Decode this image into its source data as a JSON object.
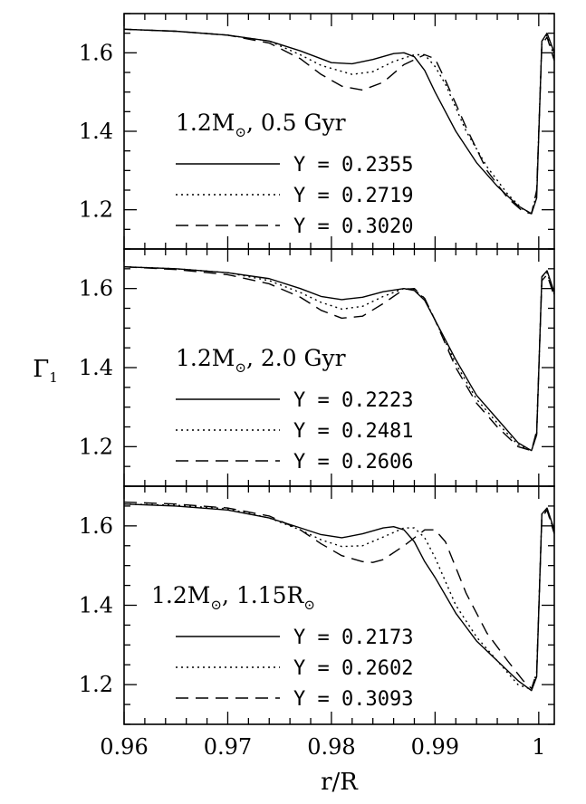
{
  "chart_data": {
    "type": "line",
    "xlabel": "r/R",
    "ylabel": "Γ",
    "ylabel_subscript": "1",
    "xlim": [
      0.96,
      1.0015
    ],
    "x_ticks": [
      "0.96",
      "0.97",
      "0.98",
      "0.99",
      "1"
    ],
    "panels": [
      {
        "annotation": {
          "main": "1.2M",
          "sub": "⊙",
          "rest": ",  0.5 Gyr"
        },
        "ylim": [
          1.1,
          1.7
        ],
        "y_ticks": [
          "1.2",
          "1.4",
          "1.6"
        ],
        "series": [
          {
            "name": "Y = 0.2355",
            "style": "solid",
            "x": [
              0.96,
              0.965,
              0.97,
              0.974,
              0.977,
              0.98,
              0.982,
              0.984,
              0.986,
              0.987,
              0.988,
              0.989,
              0.99,
              0.992,
              0.994,
              0.996,
              0.998,
              0.9993,
              0.9998,
              1.0003,
              1.0008,
              1.0015
            ],
            "y": [
              1.66,
              1.655,
              1.645,
              1.63,
              1.605,
              1.575,
              1.572,
              1.583,
              1.598,
              1.6,
              1.59,
              1.555,
              1.5,
              1.4,
              1.32,
              1.26,
              1.21,
              1.19,
              1.23,
              1.63,
              1.65,
              1.6
            ]
          },
          {
            "name": "Y = 0.2719",
            "style": "dotted",
            "x": [
              0.96,
              0.965,
              0.97,
              0.974,
              0.977,
              0.979,
              0.982,
              0.984,
              0.986,
              0.988,
              0.989,
              0.99,
              0.991,
              0.993,
              0.995,
              0.997,
              0.9985,
              0.9993,
              0.9998,
              1.0003,
              1.0008,
              1.0015
            ],
            "y": [
              1.66,
              1.655,
              1.645,
              1.63,
              1.595,
              1.568,
              1.545,
              1.552,
              1.578,
              1.595,
              1.595,
              1.565,
              1.52,
              1.4,
              1.31,
              1.24,
              1.2,
              1.192,
              1.24,
              1.63,
              1.645,
              1.59
            ]
          },
          {
            "name": "Y = 0.3020",
            "style": "dashed",
            "x": [
              0.96,
              0.965,
              0.97,
              0.974,
              0.977,
              0.979,
              0.981,
              0.983,
              0.985,
              0.987,
              0.989,
              0.99,
              0.991,
              0.993,
              0.995,
              0.997,
              0.9985,
              0.9993,
              0.9998,
              1.0003,
              1.0008,
              1.0015
            ],
            "y": [
              1.66,
              1.655,
              1.645,
              1.625,
              1.585,
              1.545,
              1.515,
              1.505,
              1.525,
              1.57,
              1.595,
              1.585,
              1.53,
              1.41,
              1.3,
              1.23,
              1.195,
              1.19,
              1.25,
              1.62,
              1.64,
              1.58
            ]
          }
        ]
      },
      {
        "annotation": {
          "main": "1.2M",
          "sub": "⊙",
          "rest": ",  2.0 Gyr"
        },
        "ylim": [
          1.1,
          1.7
        ],
        "y_ticks": [
          "1.2",
          "1.4",
          "1.6"
        ],
        "series": [
          {
            "name": "Y = 0.2223",
            "style": "solid",
            "x": [
              0.96,
              0.965,
              0.97,
              0.974,
              0.977,
              0.979,
              0.981,
              0.983,
              0.985,
              0.987,
              0.988,
              0.989,
              0.99,
              0.992,
              0.994,
              0.996,
              0.998,
              0.9993,
              0.9998,
              1.0003,
              1.0008,
              1.0015
            ],
            "y": [
              1.655,
              1.65,
              1.64,
              1.625,
              1.6,
              1.58,
              1.572,
              1.578,
              1.592,
              1.6,
              1.595,
              1.57,
              1.52,
              1.42,
              1.33,
              1.27,
              1.21,
              1.19,
              1.23,
              1.63,
              1.645,
              1.59
            ]
          },
          {
            "name": "Y = 0.2481",
            "style": "dotted",
            "x": [
              0.96,
              0.965,
              0.97,
              0.974,
              0.977,
              0.979,
              0.981,
              0.983,
              0.985,
              0.987,
              0.988,
              0.989,
              0.99,
              0.992,
              0.994,
              0.996,
              0.998,
              0.9993,
              0.9998,
              1.0003,
              1.0008,
              1.0015
            ],
            "y": [
              1.655,
              1.65,
              1.64,
              1.62,
              1.59,
              1.565,
              1.548,
              1.555,
              1.58,
              1.6,
              1.598,
              1.573,
              1.52,
              1.41,
              1.32,
              1.26,
              1.205,
              1.19,
              1.23,
              1.63,
              1.64,
              1.585
            ]
          },
          {
            "name": "Y = 0.2606",
            "style": "dashed",
            "x": [
              0.96,
              0.965,
              0.97,
              0.974,
              0.977,
              0.979,
              0.981,
              0.983,
              0.985,
              0.987,
              0.988,
              0.989,
              0.99,
              0.992,
              0.994,
              0.996,
              0.998,
              0.9993,
              0.9998,
              1.0003,
              1.0008,
              1.0015
            ],
            "y": [
              1.655,
              1.648,
              1.635,
              1.612,
              1.578,
              1.545,
              1.525,
              1.53,
              1.562,
              1.598,
              1.6,
              1.575,
              1.52,
              1.4,
              1.31,
              1.25,
              1.2,
              1.19,
              1.24,
              1.62,
              1.635,
              1.58
            ]
          }
        ]
      },
      {
        "annotation": {
          "main": "1.2M",
          "sub": "⊙",
          "rest": ", 1.15R",
          "sub2": "⊙"
        },
        "ylim": [
          1.1,
          1.7
        ],
        "y_ticks": [
          "1.2",
          "1.4",
          "1.6"
        ],
        "series": [
          {
            "name": "Y = 0.2173",
            "style": "solid",
            "x": [
              0.96,
              0.965,
              0.97,
              0.974,
              0.977,
              0.979,
              0.981,
              0.983,
              0.985,
              0.986,
              0.987,
              0.988,
              0.989,
              0.99,
              0.992,
              0.994,
              0.996,
              0.998,
              0.9993,
              0.9998,
              1.0003,
              1.0008,
              1.0015
            ],
            "y": [
              1.655,
              1.65,
              1.64,
              1.62,
              1.595,
              1.578,
              1.57,
              1.58,
              1.595,
              1.598,
              1.59,
              1.56,
              1.51,
              1.47,
              1.38,
              1.31,
              1.26,
              1.21,
              1.185,
              1.22,
              1.63,
              1.645,
              1.59
            ]
          },
          {
            "name": "Y = 0.2602",
            "style": "dotted",
            "x": [
              0.96,
              0.965,
              0.97,
              0.974,
              0.977,
              0.979,
              0.981,
              0.983,
              0.985,
              0.987,
              0.988,
              0.989,
              0.99,
              0.992,
              0.994,
              0.996,
              0.998,
              0.9993,
              0.9998,
              1.0003,
              1.0008,
              1.0015
            ],
            "y": [
              1.655,
              1.652,
              1.643,
              1.62,
              1.59,
              1.565,
              1.548,
              1.55,
              1.572,
              1.595,
              1.595,
              1.57,
              1.52,
              1.4,
              1.32,
              1.26,
              1.2,
              1.188,
              1.23,
              1.63,
              1.64,
              1.585
            ]
          },
          {
            "name": "Y = 0.3093",
            "style": "dashed",
            "x": [
              0.96,
              0.965,
              0.97,
              0.974,
              0.977,
              0.979,
              0.981,
              0.983,
              0.984,
              0.985,
              0.987,
              0.989,
              0.99,
              0.991,
              0.993,
              0.995,
              0.997,
              0.9985,
              0.9993,
              0.9998,
              1.0003,
              1.0008,
              1.0015
            ],
            "y": [
              1.66,
              1.655,
              1.645,
              1.625,
              1.59,
              1.555,
              1.525,
              1.51,
              1.508,
              1.515,
              1.55,
              1.59,
              1.59,
              1.56,
              1.43,
              1.33,
              1.26,
              1.21,
              1.19,
              1.23,
              1.62,
              1.64,
              1.58
            ]
          }
        ]
      }
    ]
  }
}
